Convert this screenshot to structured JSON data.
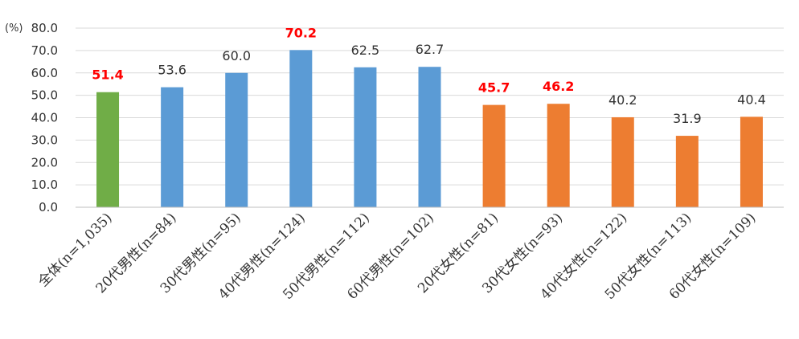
{
  "chart_data": {
    "type": "bar",
    "y_unit": "(%)",
    "ylim": [
      0,
      80
    ],
    "y_ticks": [
      "0.0",
      "10.0",
      "20.0",
      "30.0",
      "40.0",
      "50.0",
      "60.0",
      "70.0",
      "80.0"
    ],
    "grid": true,
    "categories": [
      "全体(n=1,035)",
      "20代男性(n=84)",
      "30代男性(n=95)",
      "40代男性(n=124)",
      "50代男性(n=112)",
      "60代男性(n=102)",
      "20代女性(n=81)",
      "30代女性(n=93)",
      "40代女性(n=122)",
      "50代女性(n=113)",
      "60代女性(n=109)"
    ],
    "values": [
      51.4,
      53.6,
      60.0,
      70.2,
      62.5,
      62.7,
      45.7,
      46.2,
      40.2,
      31.9,
      40.4
    ],
    "value_labels": [
      "51.4",
      "53.6",
      "60.0",
      "70.2",
      "62.5",
      "62.7",
      "45.7",
      "46.2",
      "40.2",
      "31.9",
      "40.4"
    ],
    "bar_colors": [
      "#70ad47",
      "#5b9bd5",
      "#5b9bd5",
      "#5b9bd5",
      "#5b9bd5",
      "#5b9bd5",
      "#ed7d31",
      "#ed7d31",
      "#ed7d31",
      "#ed7d31",
      "#ed7d31"
    ],
    "highlighted_labels": [
      true,
      false,
      false,
      true,
      false,
      false,
      true,
      true,
      false,
      false,
      false
    ],
    "colors": {
      "highlight_label": "#ff0000",
      "normal_label": "#333333",
      "grid": "#d9d9d9",
      "axis": "#bfbfbf"
    }
  }
}
